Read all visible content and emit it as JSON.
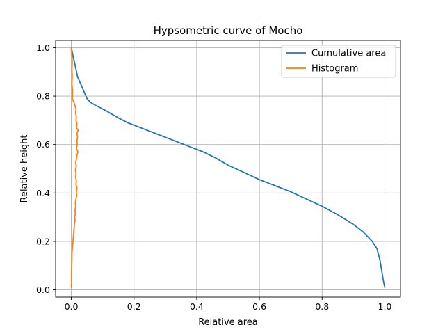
{
  "chart_data": {
    "type": "line",
    "title": "Hypsometric curve of Mocho",
    "xlabel": "Relative area",
    "ylabel": "Relative height",
    "xlim": [
      -0.05,
      1.05
    ],
    "ylim": [
      -0.03,
      1.03
    ],
    "xticks": [
      0.0,
      0.2,
      0.4,
      0.6,
      0.8,
      1.0
    ],
    "yticks": [
      0.0,
      0.2,
      0.4,
      0.6,
      0.8,
      1.0
    ],
    "xtick_labels": [
      "0.0",
      "0.2",
      "0.4",
      "0.6",
      "0.8",
      "1.0"
    ],
    "ytick_labels": [
      "0.0",
      "0.2",
      "0.4",
      "0.6",
      "0.8",
      "1.0"
    ],
    "grid": true,
    "legend_position": "top-right",
    "series": [
      {
        "name": "Cumulative area",
        "color": "#1f77b4",
        "points": [
          [
            0.0,
            1.0
          ],
          [
            0.005,
            0.97
          ],
          [
            0.01,
            0.94
          ],
          [
            0.015,
            0.91
          ],
          [
            0.02,
            0.88
          ],
          [
            0.03,
            0.85
          ],
          [
            0.04,
            0.82
          ],
          [
            0.05,
            0.79
          ],
          [
            0.06,
            0.775
          ],
          [
            0.08,
            0.76
          ],
          [
            0.11,
            0.74
          ],
          [
            0.15,
            0.71
          ],
          [
            0.18,
            0.69
          ],
          [
            0.22,
            0.67
          ],
          [
            0.27,
            0.645
          ],
          [
            0.33,
            0.615
          ],
          [
            0.38,
            0.59
          ],
          [
            0.42,
            0.57
          ],
          [
            0.46,
            0.545
          ],
          [
            0.5,
            0.515
          ],
          [
            0.55,
            0.485
          ],
          [
            0.6,
            0.455
          ],
          [
            0.65,
            0.43
          ],
          [
            0.7,
            0.405
          ],
          [
            0.75,
            0.375
          ],
          [
            0.8,
            0.345
          ],
          [
            0.85,
            0.31
          ],
          [
            0.9,
            0.27
          ],
          [
            0.93,
            0.24
          ],
          [
            0.96,
            0.2
          ],
          [
            0.975,
            0.17
          ],
          [
            0.985,
            0.12
          ],
          [
            0.99,
            0.08
          ],
          [
            0.995,
            0.04
          ],
          [
            1.0,
            0.01
          ]
        ]
      },
      {
        "name": "Histogram",
        "color": "#ff7f0e",
        "points": [
          [
            0.0,
            1.0
          ],
          [
            0.002,
            0.97
          ],
          [
            0.003,
            0.94
          ],
          [
            0.002,
            0.91
          ],
          [
            0.003,
            0.88
          ],
          [
            0.002,
            0.85
          ],
          [
            0.004,
            0.82
          ],
          [
            0.003,
            0.79
          ],
          [
            0.008,
            0.775
          ],
          [
            0.012,
            0.76
          ],
          [
            0.015,
            0.745
          ],
          [
            0.014,
            0.73
          ],
          [
            0.016,
            0.715
          ],
          [
            0.015,
            0.7
          ],
          [
            0.018,
            0.685
          ],
          [
            0.016,
            0.67
          ],
          [
            0.022,
            0.66
          ],
          [
            0.018,
            0.645
          ],
          [
            0.02,
            0.63
          ],
          [
            0.018,
            0.615
          ],
          [
            0.019,
            0.6
          ],
          [
            0.016,
            0.585
          ],
          [
            0.021,
            0.57
          ],
          [
            0.018,
            0.555
          ],
          [
            0.016,
            0.54
          ],
          [
            0.014,
            0.525
          ],
          [
            0.016,
            0.51
          ],
          [
            0.013,
            0.495
          ],
          [
            0.015,
            0.48
          ],
          [
            0.014,
            0.465
          ],
          [
            0.016,
            0.45
          ],
          [
            0.015,
            0.435
          ],
          [
            0.018,
            0.42
          ],
          [
            0.016,
            0.405
          ],
          [
            0.017,
            0.39
          ],
          [
            0.015,
            0.375
          ],
          [
            0.013,
            0.36
          ],
          [
            0.014,
            0.345
          ],
          [
            0.012,
            0.33
          ],
          [
            0.013,
            0.315
          ],
          [
            0.011,
            0.3
          ],
          [
            0.012,
            0.285
          ],
          [
            0.01,
            0.27
          ],
          [
            0.009,
            0.255
          ],
          [
            0.008,
            0.24
          ],
          [
            0.007,
            0.225
          ],
          [
            0.006,
            0.21
          ],
          [
            0.005,
            0.195
          ],
          [
            0.004,
            0.18
          ],
          [
            0.003,
            0.165
          ],
          [
            0.002,
            0.15
          ],
          [
            0.002,
            0.12
          ],
          [
            0.001,
            0.09
          ],
          [
            0.001,
            0.06
          ],
          [
            0.001,
            0.03
          ],
          [
            0.0,
            0.01
          ]
        ]
      }
    ]
  }
}
